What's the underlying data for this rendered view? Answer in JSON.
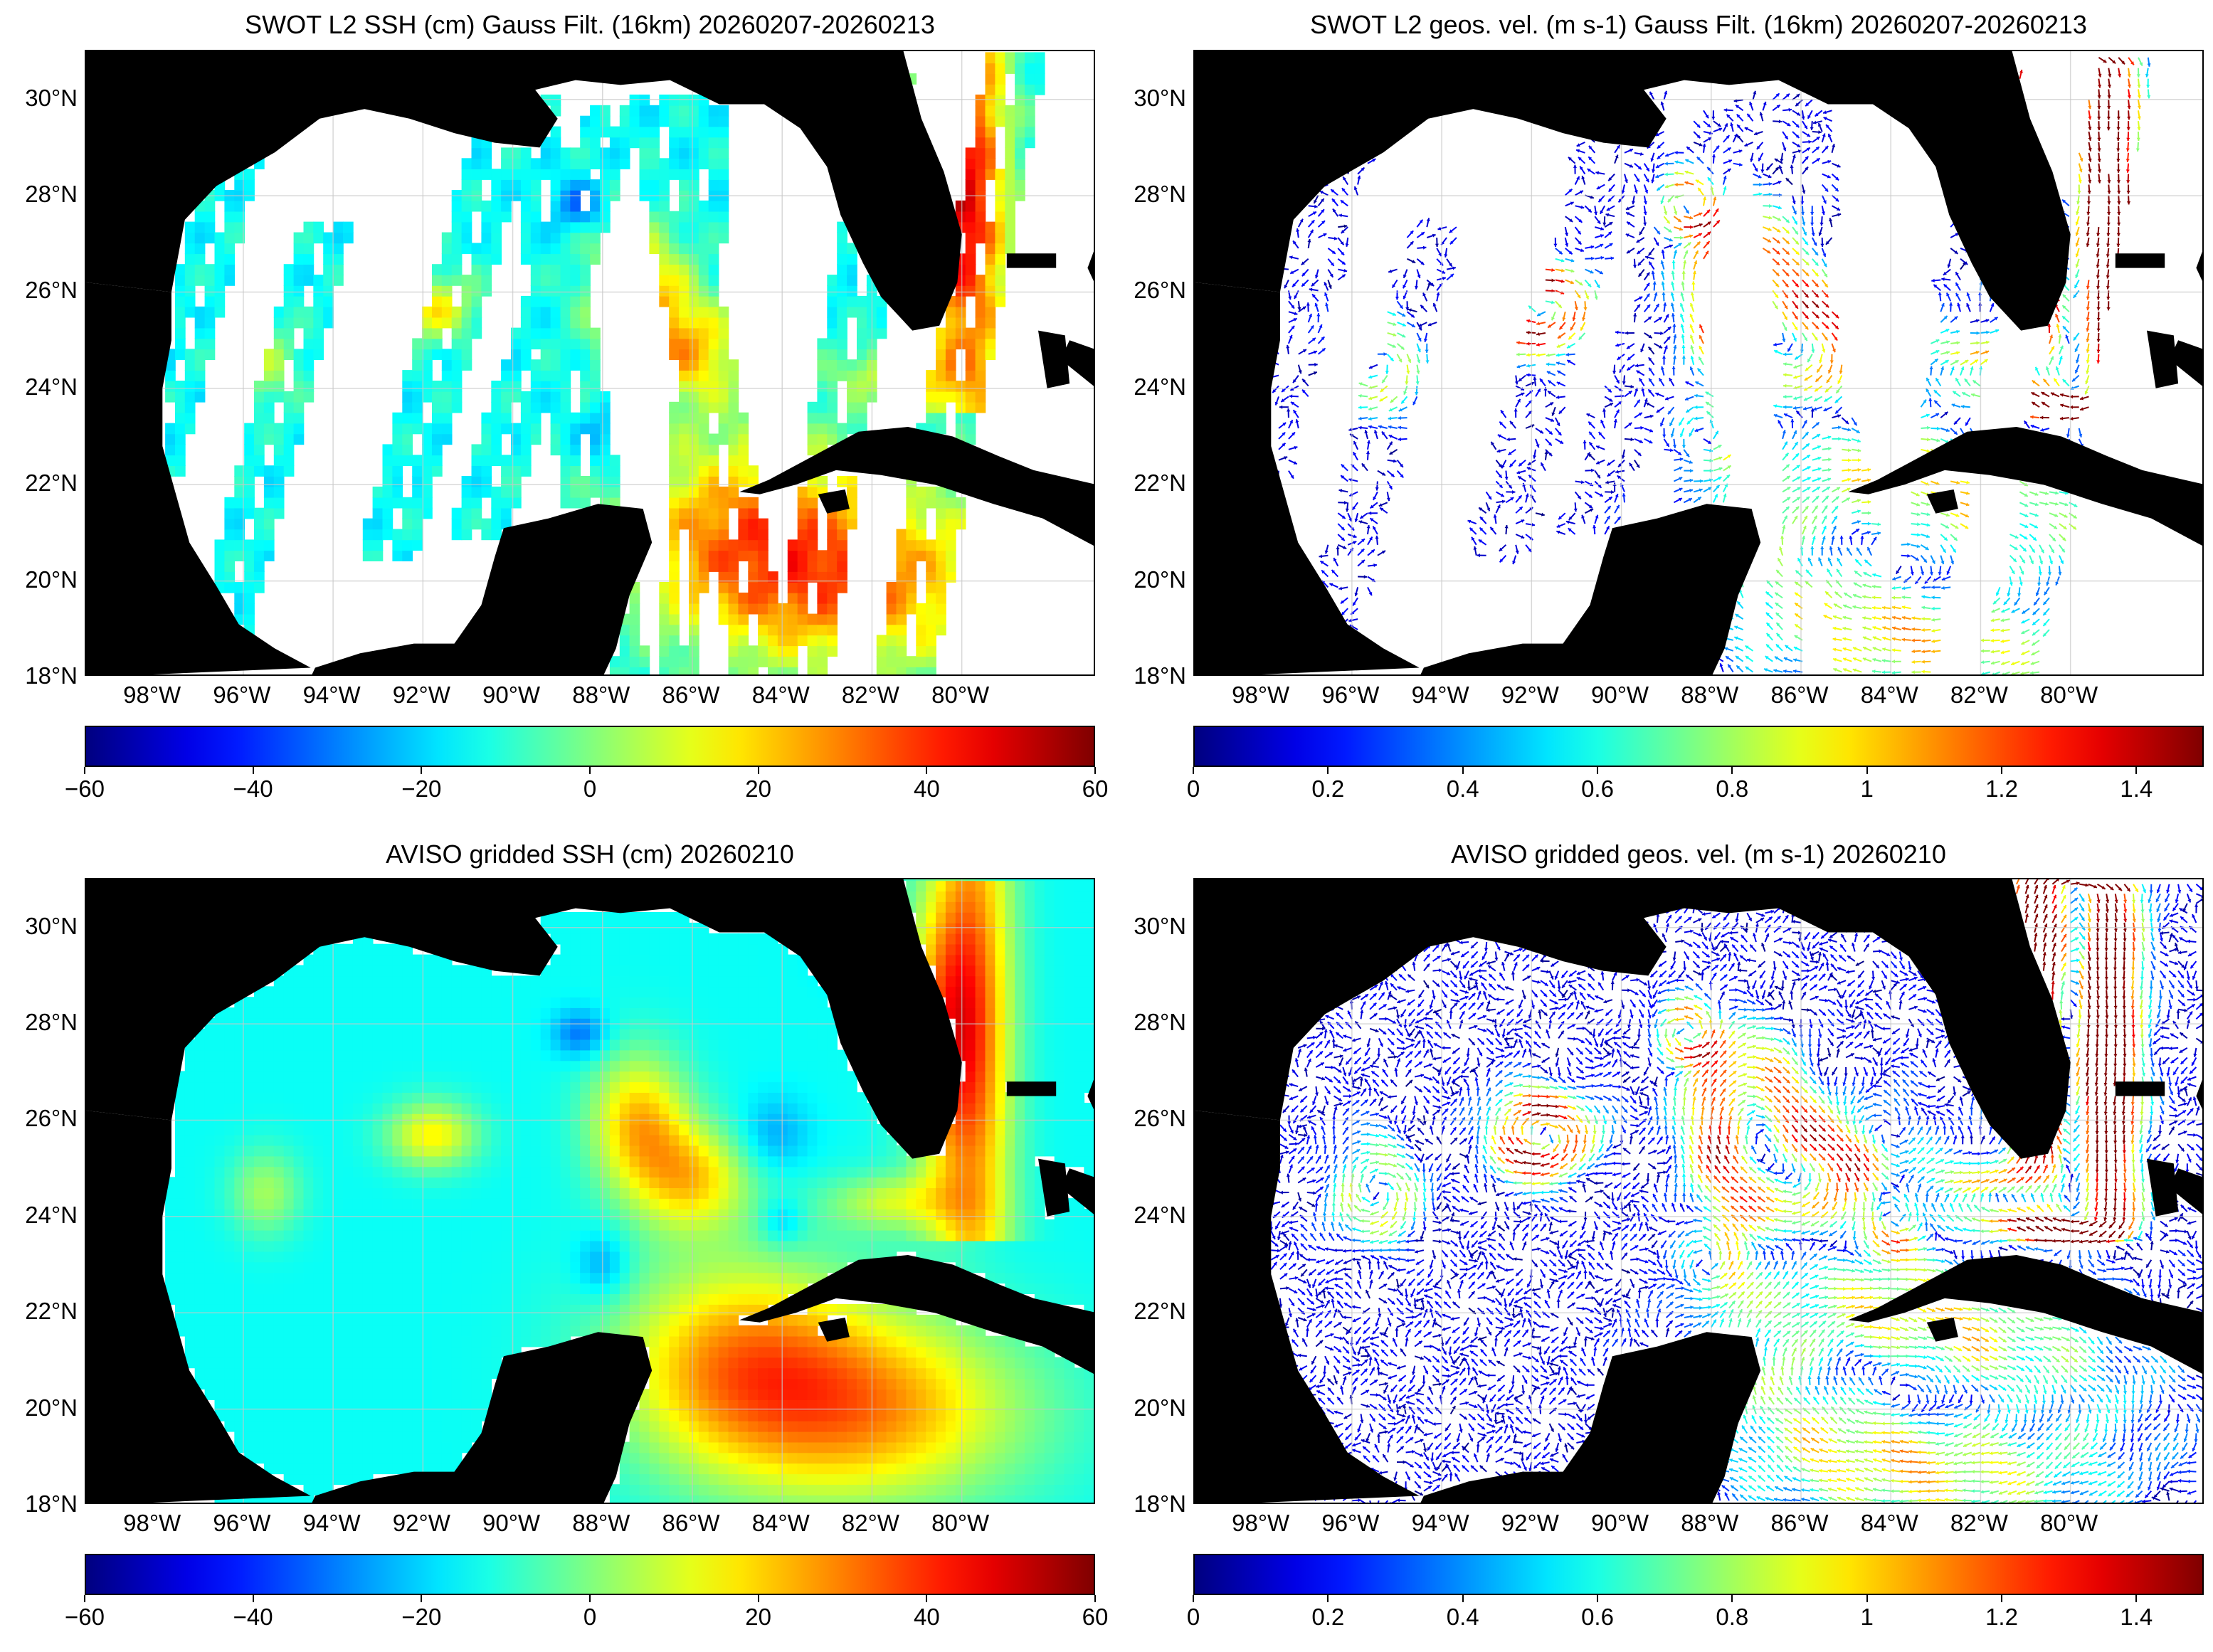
{
  "figure": {
    "panels": [
      {
        "id": "swot-ssh",
        "title": "SWOT L2 SSH (cm) Gauss Filt. (16km) 20260207-20260213",
        "kind": "scalar-swaths",
        "colorbar": {
          "colormap": "jet",
          "min": -60,
          "max": 60,
          "ticks": [
            "−60",
            "−40",
            "−20",
            "0",
            "20",
            "40",
            "60"
          ]
        }
      },
      {
        "id": "swot-vel",
        "title": "SWOT L2 geos. vel. (m s-1) Gauss Filt. (16km) 20260207-20260213",
        "kind": "vector-swaths",
        "colorbar": {
          "colormap": "jet",
          "min": 0,
          "max": 1.5,
          "ticks": [
            "0",
            "0.2",
            "0.4",
            "0.6",
            "0.8",
            "1",
            "1.2",
            "1.4"
          ]
        }
      },
      {
        "id": "aviso-ssh",
        "title": "AVISO gridded SSH (cm) 20260210",
        "kind": "scalar-gridded",
        "colorbar": {
          "colormap": "jet",
          "min": -60,
          "max": 60,
          "ticks": [
            "−60",
            "−40",
            "−20",
            "0",
            "20",
            "40",
            "60"
          ]
        }
      },
      {
        "id": "aviso-vel",
        "title": "AVISO gridded geos. vel. (m s-1)  20260210",
        "kind": "vector-gridded",
        "colorbar": {
          "colormap": "jet",
          "min": 0,
          "max": 1.5,
          "ticks": [
            "0",
            "0.2",
            "0.4",
            "0.6",
            "0.8",
            "1",
            "1.2",
            "1.4"
          ]
        }
      }
    ],
    "map": {
      "lon_range": [
        -99.5,
        -77.0
      ],
      "lat_range": [
        18,
        31
      ],
      "lat_labels": [
        "30°N",
        "28°N",
        "26°N",
        "24°N",
        "22°N",
        "20°N",
        "18°N"
      ],
      "lat_values": [
        30,
        28,
        26,
        24,
        22,
        20,
        18
      ],
      "lon_labels": [
        "98°W",
        "96°W",
        "94°W",
        "92°W",
        "90°W",
        "88°W",
        "86°W",
        "84°W",
        "82°W",
        "80°W"
      ],
      "lon_values": [
        -98,
        -96,
        -94,
        -92,
        -90,
        -88,
        -86,
        -84,
        -82,
        -80
      ],
      "land_color": "#000000",
      "ocean_nodata_color": "#ffffff",
      "gridline_color": "#c8c8c8"
    }
  }
}
